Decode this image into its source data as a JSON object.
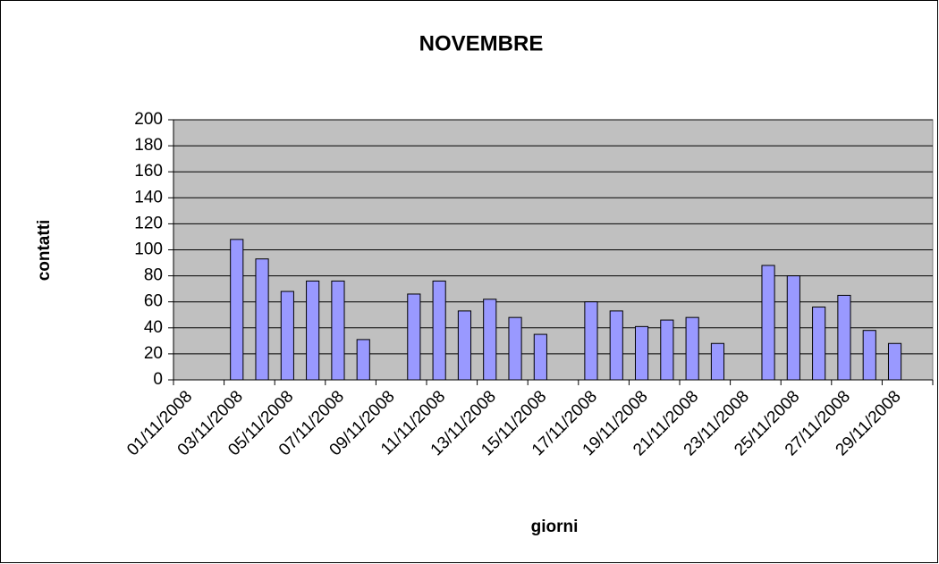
{
  "chart_data": {
    "type": "bar",
    "title": "NOVEMBRE",
    "x_label": "giorni",
    "y_label": "contatti",
    "categories": [
      "01/11/2008",
      null,
      "03/11/2008",
      null,
      "05/11/2008",
      null,
      "07/11/2008",
      null,
      "09/11/2008",
      null,
      "11/11/2008",
      null,
      "13/11/2008",
      null,
      "15/11/2008",
      null,
      "17/11/2008",
      null,
      "19/11/2008",
      null,
      "21/11/2008",
      null,
      "23/11/2008",
      null,
      "25/11/2008",
      null,
      "27/11/2008",
      null,
      "29/11/2008",
      null
    ],
    "values": [
      0,
      0,
      108,
      93,
      68,
      76,
      76,
      31,
      0,
      66,
      76,
      53,
      62,
      48,
      35,
      0,
      60,
      53,
      41,
      46,
      48,
      28,
      0,
      88,
      80,
      56,
      65,
      38,
      28,
      0
    ],
    "color": "#9999ff",
    "ylim": [
      0,
      200
    ],
    "yticks": [
      0,
      20,
      40,
      60,
      80,
      100,
      120,
      140,
      160,
      180,
      200
    ],
    "grid": true
  }
}
